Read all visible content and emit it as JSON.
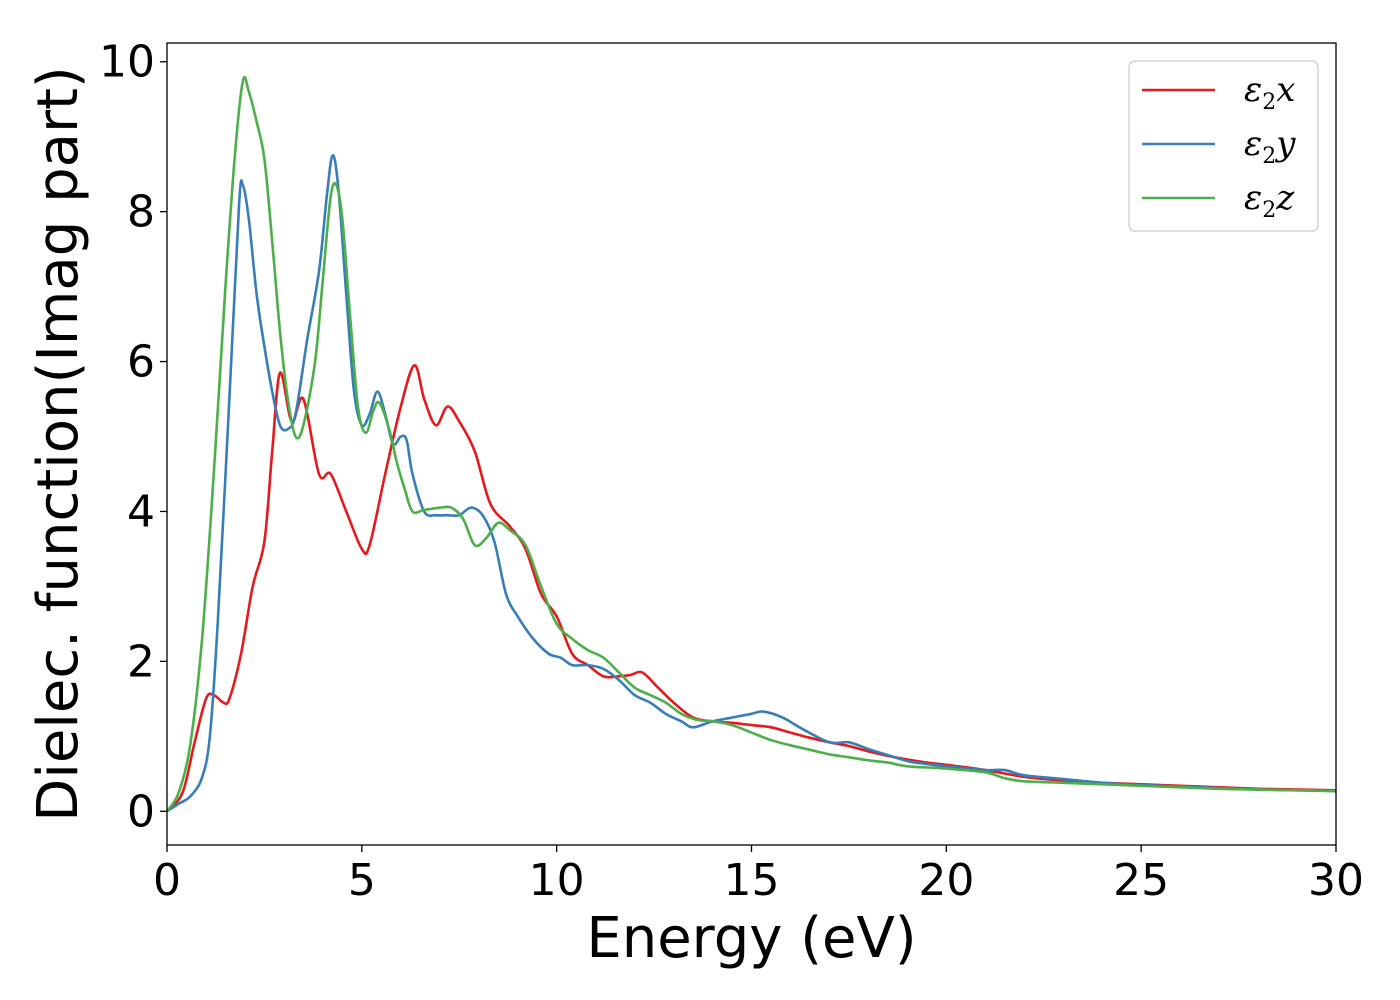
{
  "chart_data": {
    "type": "line",
    "title": "",
    "xlabel": "Energy (eV)",
    "ylabel": "Dielec. function(Imag part)",
    "xlim": [
      0,
      30
    ],
    "ylim": [
      -0.45,
      10.25
    ],
    "x_ticks": [
      0,
      5,
      10,
      15,
      20,
      25,
      30
    ],
    "x_tick_labels": [
      "0",
      "5",
      "10",
      "15",
      "20",
      "25",
      "30"
    ],
    "y_ticks": [
      0,
      2,
      4,
      6,
      8,
      10
    ],
    "y_tick_labels": [
      "0",
      "2",
      "4",
      "6",
      "8",
      "10"
    ],
    "grid": false,
    "legend_position": "top-right",
    "series": [
      {
        "name": "ε2x",
        "name_base": "ε",
        "name_sub": "2",
        "name_tail": "x",
        "color": "#e41a1c",
        "points": [
          [
            0,
            0
          ],
          [
            0.4,
            0.25
          ],
          [
            0.7,
            0.9
          ],
          [
            1.0,
            1.5
          ],
          [
            1.2,
            1.55
          ],
          [
            1.45,
            1.45
          ],
          [
            1.6,
            1.5
          ],
          [
            1.9,
            2.1
          ],
          [
            2.2,
            3.0
          ],
          [
            2.5,
            3.6
          ],
          [
            2.7,
            4.8
          ],
          [
            2.9,
            5.85
          ],
          [
            3.2,
            5.2
          ],
          [
            3.5,
            5.5
          ],
          [
            3.9,
            4.5
          ],
          [
            4.2,
            4.5
          ],
          [
            4.6,
            4.0
          ],
          [
            5.0,
            3.5
          ],
          [
            5.2,
            3.55
          ],
          [
            5.6,
            4.5
          ],
          [
            6.0,
            5.4
          ],
          [
            6.35,
            5.95
          ],
          [
            6.6,
            5.5
          ],
          [
            6.9,
            5.15
          ],
          [
            7.2,
            5.4
          ],
          [
            7.5,
            5.2
          ],
          [
            7.9,
            4.8
          ],
          [
            8.3,
            4.1
          ],
          [
            8.8,
            3.8
          ],
          [
            9.2,
            3.5
          ],
          [
            9.6,
            2.9
          ],
          [
            10.0,
            2.6
          ],
          [
            10.4,
            2.1
          ],
          [
            10.8,
            1.95
          ],
          [
            11.2,
            1.8
          ],
          [
            11.6,
            1.8
          ],
          [
            11.9,
            1.82
          ],
          [
            12.2,
            1.85
          ],
          [
            12.6,
            1.65
          ],
          [
            13.0,
            1.45
          ],
          [
            13.5,
            1.25
          ],
          [
            14.0,
            1.2
          ],
          [
            14.5,
            1.18
          ],
          [
            15.0,
            1.15
          ],
          [
            15.5,
            1.12
          ],
          [
            16.0,
            1.05
          ],
          [
            16.5,
            0.98
          ],
          [
            17.0,
            0.92
          ],
          [
            17.5,
            0.87
          ],
          [
            18.0,
            0.8
          ],
          [
            18.5,
            0.74
          ],
          [
            19.0,
            0.69
          ],
          [
            19.5,
            0.65
          ],
          [
            20.0,
            0.62
          ],
          [
            21.0,
            0.55
          ],
          [
            22.0,
            0.46
          ],
          [
            23.0,
            0.41
          ],
          [
            24.0,
            0.38
          ],
          [
            25.0,
            0.36
          ],
          [
            26.0,
            0.34
          ],
          [
            27.0,
            0.32
          ],
          [
            28.0,
            0.3
          ],
          [
            29.0,
            0.29
          ],
          [
            30.0,
            0.28
          ]
        ]
      },
      {
        "name": "ε2y",
        "name_base": "ε",
        "name_sub": "2",
        "name_tail": "y",
        "color": "#377eb8",
        "points": [
          [
            0,
            0
          ],
          [
            0.3,
            0.1
          ],
          [
            0.6,
            0.2
          ],
          [
            0.9,
            0.45
          ],
          [
            1.1,
            1.0
          ],
          [
            1.3,
            2.5
          ],
          [
            1.6,
            5.5
          ],
          [
            1.85,
            8.1
          ],
          [
            1.95,
            8.35
          ],
          [
            2.1,
            7.9
          ],
          [
            2.3,
            6.9
          ],
          [
            2.5,
            6.2
          ],
          [
            2.7,
            5.6
          ],
          [
            2.9,
            5.15
          ],
          [
            3.1,
            5.1
          ],
          [
            3.3,
            5.3
          ],
          [
            3.6,
            6.3
          ],
          [
            3.9,
            7.2
          ],
          [
            4.1,
            8.2
          ],
          [
            4.25,
            8.75
          ],
          [
            4.4,
            8.3
          ],
          [
            4.6,
            6.9
          ],
          [
            4.8,
            5.6
          ],
          [
            5.0,
            5.15
          ],
          [
            5.2,
            5.3
          ],
          [
            5.4,
            5.6
          ],
          [
            5.6,
            5.3
          ],
          [
            5.8,
            4.9
          ],
          [
            6.0,
            5.0
          ],
          [
            6.15,
            4.95
          ],
          [
            6.3,
            4.5
          ],
          [
            6.6,
            4.0
          ],
          [
            6.9,
            3.95
          ],
          [
            7.2,
            3.95
          ],
          [
            7.5,
            3.95
          ],
          [
            7.8,
            4.05
          ],
          [
            8.1,
            3.95
          ],
          [
            8.4,
            3.6
          ],
          [
            8.7,
            2.9
          ],
          [
            9.0,
            2.6
          ],
          [
            9.4,
            2.3
          ],
          [
            9.8,
            2.1
          ],
          [
            10.1,
            2.05
          ],
          [
            10.4,
            1.95
          ],
          [
            10.8,
            1.95
          ],
          [
            11.2,
            1.9
          ],
          [
            11.6,
            1.75
          ],
          [
            12.0,
            1.55
          ],
          [
            12.4,
            1.45
          ],
          [
            12.8,
            1.3
          ],
          [
            13.2,
            1.2
          ],
          [
            13.5,
            1.12
          ],
          [
            14.0,
            1.2
          ],
          [
            14.5,
            1.25
          ],
          [
            15.0,
            1.3
          ],
          [
            15.3,
            1.33
          ],
          [
            15.8,
            1.25
          ],
          [
            16.3,
            1.1
          ],
          [
            17.0,
            0.92
          ],
          [
            17.5,
            0.92
          ],
          [
            18.0,
            0.83
          ],
          [
            18.5,
            0.75
          ],
          [
            19.0,
            0.67
          ],
          [
            19.5,
            0.63
          ],
          [
            20.0,
            0.6
          ],
          [
            21.0,
            0.55
          ],
          [
            21.5,
            0.55
          ],
          [
            22.0,
            0.48
          ],
          [
            23.0,
            0.43
          ],
          [
            24.0,
            0.38
          ],
          [
            25.0,
            0.35
          ],
          [
            26.0,
            0.33
          ],
          [
            27.0,
            0.31
          ],
          [
            28.0,
            0.29
          ],
          [
            29.0,
            0.28
          ],
          [
            30.0,
            0.27
          ]
        ]
      },
      {
        "name": "ε2z",
        "name_base": "ε",
        "name_sub": "2",
        "name_tail": "z",
        "color": "#4daf4a",
        "points": [
          [
            0,
            0
          ],
          [
            0.3,
            0.25
          ],
          [
            0.6,
            0.9
          ],
          [
            0.9,
            2.3
          ],
          [
            1.2,
            4.5
          ],
          [
            1.5,
            7.0
          ],
          [
            1.75,
            8.8
          ],
          [
            1.95,
            9.75
          ],
          [
            2.1,
            9.6
          ],
          [
            2.3,
            9.2
          ],
          [
            2.5,
            8.7
          ],
          [
            2.7,
            7.6
          ],
          [
            2.9,
            6.4
          ],
          [
            3.1,
            5.5
          ],
          [
            3.3,
            5.0
          ],
          [
            3.5,
            5.15
          ],
          [
            3.8,
            6.0
          ],
          [
            4.0,
            7.1
          ],
          [
            4.2,
            8.2
          ],
          [
            4.35,
            8.35
          ],
          [
            4.5,
            7.9
          ],
          [
            4.7,
            6.6
          ],
          [
            4.9,
            5.4
          ],
          [
            5.1,
            5.05
          ],
          [
            5.3,
            5.35
          ],
          [
            5.45,
            5.45
          ],
          [
            5.7,
            5.1
          ],
          [
            5.9,
            4.65
          ],
          [
            6.1,
            4.3
          ],
          [
            6.3,
            4.0
          ],
          [
            6.6,
            4.02
          ],
          [
            7.0,
            4.05
          ],
          [
            7.3,
            4.05
          ],
          [
            7.6,
            3.9
          ],
          [
            7.9,
            3.55
          ],
          [
            8.2,
            3.65
          ],
          [
            8.5,
            3.85
          ],
          [
            8.8,
            3.75
          ],
          [
            9.2,
            3.55
          ],
          [
            9.6,
            3.0
          ],
          [
            10.0,
            2.5
          ],
          [
            10.4,
            2.3
          ],
          [
            10.8,
            2.15
          ],
          [
            11.2,
            2.05
          ],
          [
            11.6,
            1.85
          ],
          [
            12.0,
            1.65
          ],
          [
            12.4,
            1.55
          ],
          [
            12.8,
            1.45
          ],
          [
            13.2,
            1.3
          ],
          [
            13.6,
            1.22
          ],
          [
            14.0,
            1.2
          ],
          [
            14.5,
            1.15
          ],
          [
            15.0,
            1.05
          ],
          [
            15.5,
            0.95
          ],
          [
            16.0,
            0.88
          ],
          [
            16.5,
            0.82
          ],
          [
            17.0,
            0.76
          ],
          [
            17.5,
            0.72
          ],
          [
            18.0,
            0.68
          ],
          [
            18.5,
            0.65
          ],
          [
            19.0,
            0.6
          ],
          [
            20.0,
            0.57
          ],
          [
            21.0,
            0.52
          ],
          [
            21.5,
            0.44
          ],
          [
            22.0,
            0.4
          ],
          [
            23.0,
            0.38
          ],
          [
            24.0,
            0.36
          ],
          [
            25.0,
            0.34
          ],
          [
            26.0,
            0.32
          ],
          [
            27.0,
            0.3
          ],
          [
            28.0,
            0.29
          ],
          [
            29.0,
            0.28
          ],
          [
            30.0,
            0.27
          ]
        ]
      }
    ]
  }
}
